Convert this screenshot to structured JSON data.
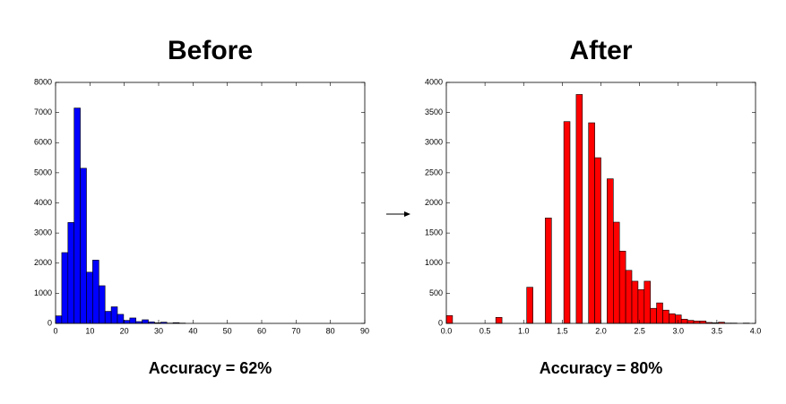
{
  "chart_data": [
    {
      "type": "histogram",
      "title": "Before",
      "caption": "Accuracy = 62%",
      "color": "#0000ff",
      "bins": [
        0,
        1.8,
        3.6,
        5.4,
        7.2,
        9,
        10.8,
        12.6,
        14.4,
        16.2,
        18,
        19.8,
        21.6,
        23.4,
        25.2,
        27,
        28.8,
        30.6,
        32.4,
        34.2,
        36,
        37.8
      ],
      "values": [
        250,
        2350,
        3350,
        7150,
        5150,
        1700,
        2100,
        1250,
        400,
        550,
        300,
        100,
        180,
        60,
        120,
        50,
        20,
        40,
        10,
        25,
        10
      ],
      "xlim": [
        0,
        90
      ],
      "xticks": [
        0,
        10,
        20,
        30,
        40,
        50,
        60,
        70,
        80,
        90
      ],
      "ylim": [
        0,
        8000
      ],
      "yticks": [
        0,
        1000,
        2000,
        3000,
        4000,
        5000,
        6000,
        7000,
        8000
      ]
    },
    {
      "type": "histogram",
      "title": "After",
      "caption": "Accuracy = 80%",
      "color": "#ff0000",
      "bins": [
        0,
        0.08,
        0.16,
        0.24,
        0.32,
        0.4,
        0.48,
        0.56,
        0.64,
        0.72,
        0.8,
        0.88,
        0.96,
        1.04,
        1.12,
        1.2,
        1.28,
        1.36,
        1.44,
        1.52,
        1.6,
        1.68,
        1.76,
        1.84,
        1.92,
        2,
        2.08,
        2.16,
        2.24,
        2.32,
        2.4,
        2.48,
        2.56,
        2.64,
        2.72,
        2.8,
        2.88,
        2.96,
        3.04,
        3.12,
        3.2,
        3.28,
        3.36,
        3.44,
        3.52,
        3.6,
        3.68,
        3.76,
        3.84,
        3.92,
        4
      ],
      "values": [
        130,
        0,
        0,
        0,
        0,
        0,
        0,
        0,
        100,
        0,
        0,
        0,
        0,
        600,
        0,
        0,
        1750,
        0,
        0,
        3350,
        0,
        3800,
        0,
        3330,
        2750,
        0,
        2400,
        1680,
        1200,
        880,
        700,
        560,
        700,
        250,
        340,
        220,
        160,
        140,
        70,
        50,
        40,
        40,
        15,
        10,
        20,
        5,
        5,
        0,
        5,
        0
      ],
      "xlim": [
        0,
        4
      ],
      "xticks": [
        {
          "value": 0,
          "label": "0.0"
        },
        0.5,
        {
          "value": 1,
          "label": "1.0"
        },
        1.5,
        {
          "value": 2,
          "label": "2.0"
        },
        2.5,
        {
          "value": 3,
          "label": "3.0"
        },
        3.5,
        {
          "value": 4,
          "label": "4.0"
        }
      ],
      "ylim": [
        0,
        4000
      ],
      "yticks": [
        0,
        500,
        1000,
        1500,
        2000,
        2500,
        3000,
        3500,
        4000
      ]
    }
  ]
}
